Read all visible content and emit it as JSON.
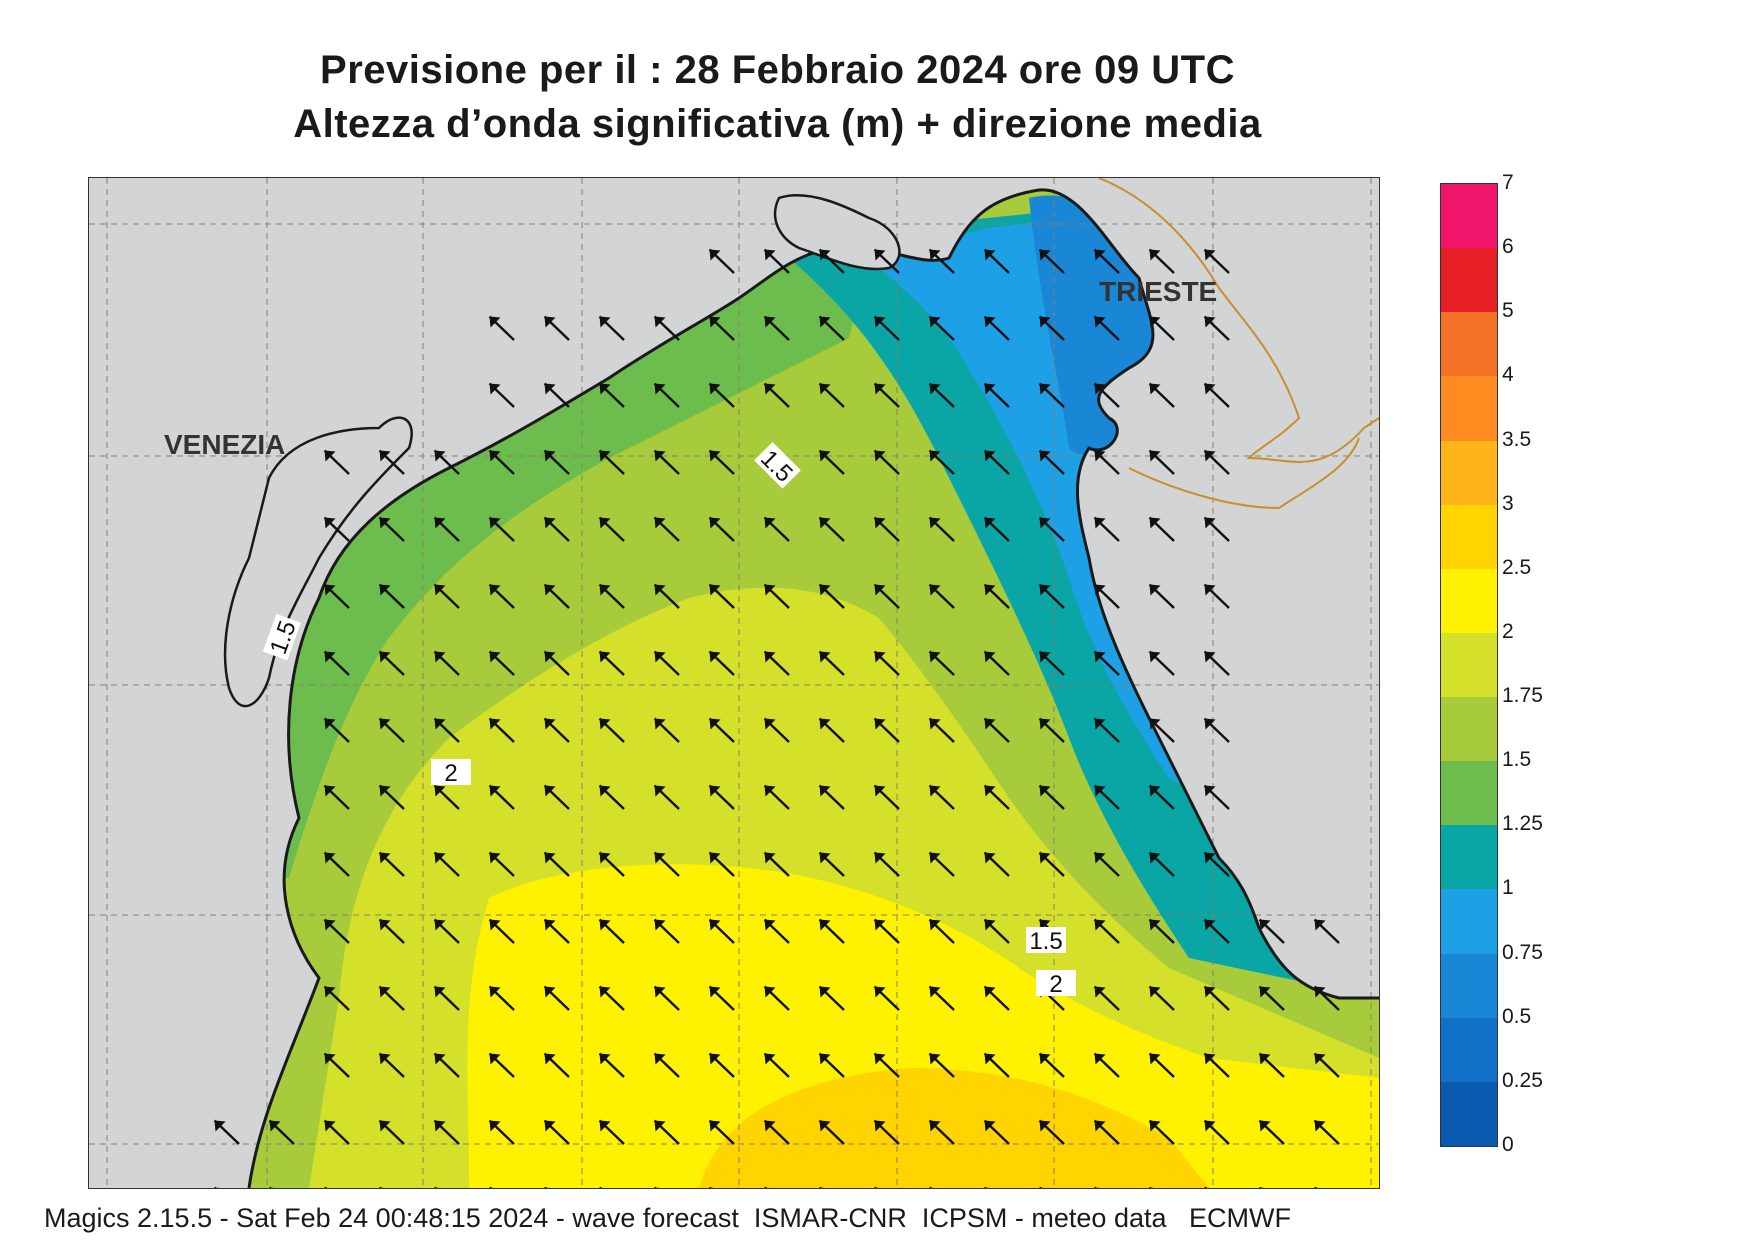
{
  "title": {
    "line1": "Previsione per il  :  28  Febbraio 2024   ore 09 UTC",
    "line2": "Altezza d’onda significativa (m) + direzione media"
  },
  "map": {
    "cities": [
      "VENEZIA",
      "TRIESTE"
    ],
    "contour_labels": [
      "1.5",
      "1.5",
      "2",
      "1.5",
      "2"
    ],
    "arrow_direction": "north-west",
    "colors": {
      "land": "#d3d4d6",
      "coast": "#1a1a1a",
      "border": "#c8902a",
      "grid": "#8a7f6a",
      "arrow": "#111111"
    },
    "legend": {
      "levels": [
        "0",
        "0.25",
        "0.5",
        "0.75",
        "1",
        "1.25",
        "1.5",
        "1.75",
        "2",
        "2.5",
        "3",
        "3.5",
        "4",
        "5",
        "6",
        "7"
      ],
      "colors": [
        "#0a5ab0",
        "#1171c9",
        "#1a86d6",
        "#1ea0e6",
        "#0aa6a6",
        "#6cbd4d",
        "#a7cb3b",
        "#d4e02a",
        "#fff200",
        "#ffd400",
        "#ffb41a",
        "#ff8a20",
        "#f57128",
        "#e81e25",
        "#f0146b"
      ]
    }
  },
  "footer": "Magics 2.15.5 - Sat Feb 24 00:48:15 2024 - wave forecast  ISMAR-CNR  ICPSM - meteo data   ECMWF"
}
